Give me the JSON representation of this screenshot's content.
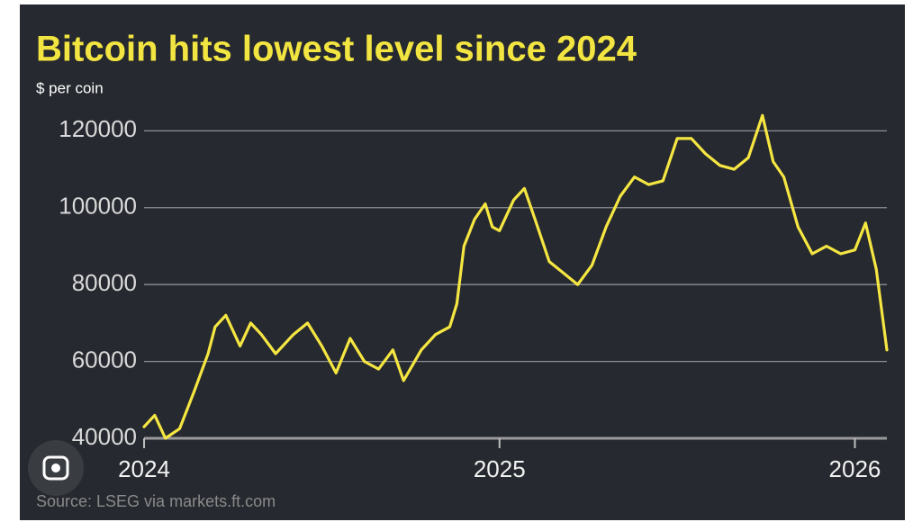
{
  "chart_data": {
    "type": "line",
    "title": "Bitcoin hits lowest level since 2024",
    "y_label": "$ per coin",
    "source": "Source: LSEG via markets.ft.com",
    "color": "#f5e642",
    "x": [
      2024.0,
      2024.03,
      2024.06,
      2024.1,
      2024.14,
      2024.18,
      2024.2,
      2024.23,
      2024.27,
      2024.3,
      2024.33,
      2024.37,
      2024.42,
      2024.46,
      2024.5,
      2024.54,
      2024.58,
      2024.62,
      2024.66,
      2024.7,
      2024.73,
      2024.78,
      2024.82,
      2024.86,
      2024.88,
      2024.9,
      2024.93,
      2024.96,
      2024.98,
      2025.0,
      2025.04,
      2025.07,
      2025.1,
      2025.14,
      2025.18,
      2025.22,
      2025.26,
      2025.3,
      2025.34,
      2025.38,
      2025.42,
      2025.46,
      2025.5,
      2025.54,
      2025.58,
      2025.62,
      2025.66,
      2025.7,
      2025.74,
      2025.77,
      2025.8,
      2025.84,
      2025.88,
      2025.92,
      2025.96,
      2026.0,
      2026.03,
      2026.06,
      2026.09
    ],
    "values": [
      43000,
      46000,
      40000,
      42500,
      52000,
      62000,
      69000,
      72000,
      64000,
      70000,
      67000,
      62000,
      67000,
      70000,
      64000,
      57000,
      66000,
      60000,
      58000,
      63000,
      55000,
      63000,
      67000,
      69000,
      75000,
      90000,
      97000,
      101000,
      95000,
      94000,
      102000,
      105000,
      97000,
      86000,
      83000,
      80000,
      85000,
      95000,
      103000,
      108000,
      106000,
      107000,
      118000,
      118000,
      114000,
      111000,
      110000,
      113000,
      124000,
      112000,
      108000,
      95000,
      88000,
      90000,
      88000,
      89000,
      96000,
      84000,
      63000
    ],
    "xlim": [
      2024,
      2026.09
    ],
    "xticks": [
      2024,
      2025,
      2026
    ],
    "ylim": [
      40000,
      125000
    ],
    "yticks": [
      40000,
      60000,
      80000,
      100000,
      120000
    ],
    "grid": true
  }
}
